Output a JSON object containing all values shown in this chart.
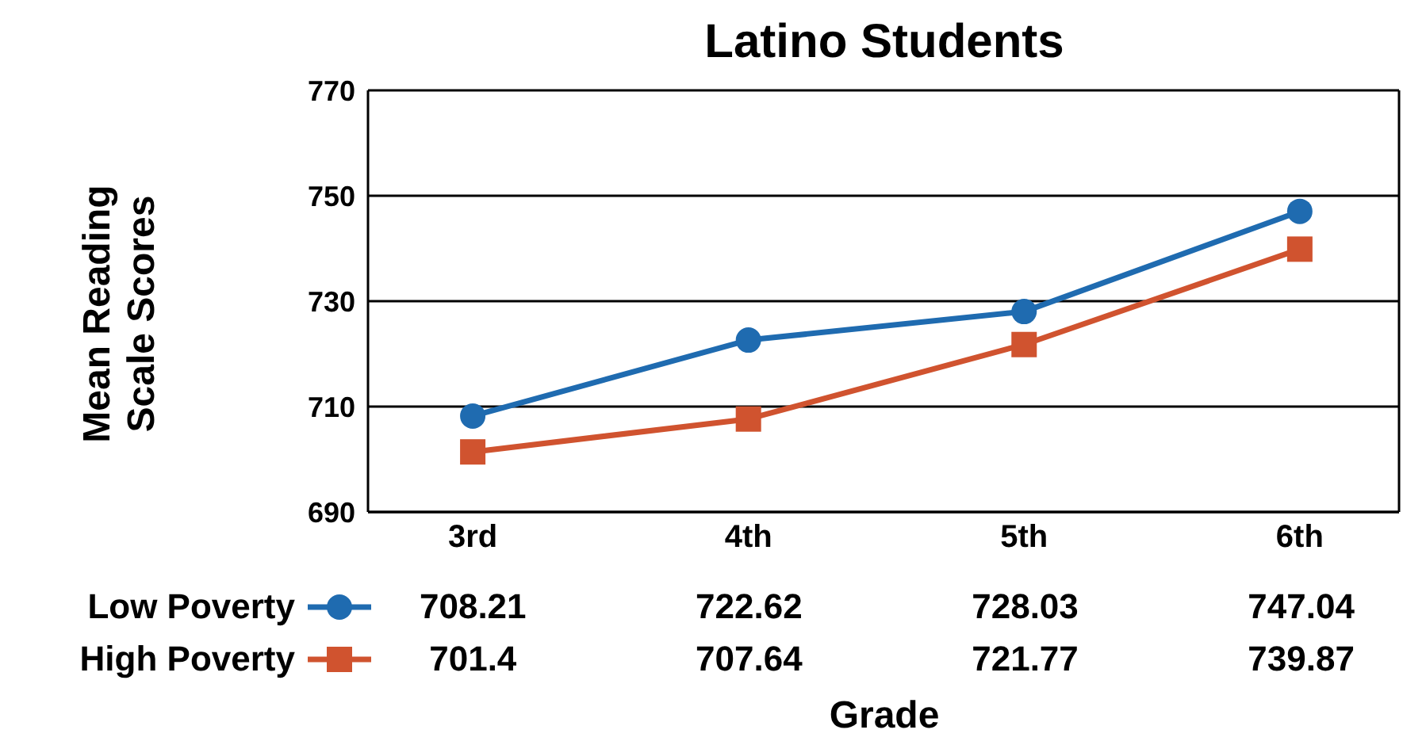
{
  "chart_data": {
    "type": "line",
    "title": "Latino Students",
    "xlabel": "Grade",
    "ylabel": "Mean Reading Scale Scores",
    "categories": [
      "3rd",
      "4th",
      "5th",
      "6th"
    ],
    "series": [
      {
        "name": "Low Poverty",
        "color": "#1f6bb0",
        "marker": "circle",
        "values": [
          708.21,
          722.62,
          728.03,
          747.04
        ]
      },
      {
        "name": "High Poverty",
        "color": "#d0532f",
        "marker": "square",
        "values": [
          701.4,
          707.64,
          721.77,
          739.87
        ]
      }
    ],
    "ylim": [
      690,
      770
    ],
    "yticks": [
      690,
      710,
      730,
      750,
      770
    ],
    "grid": "y",
    "legend": "bottom",
    "data_labels": true
  }
}
